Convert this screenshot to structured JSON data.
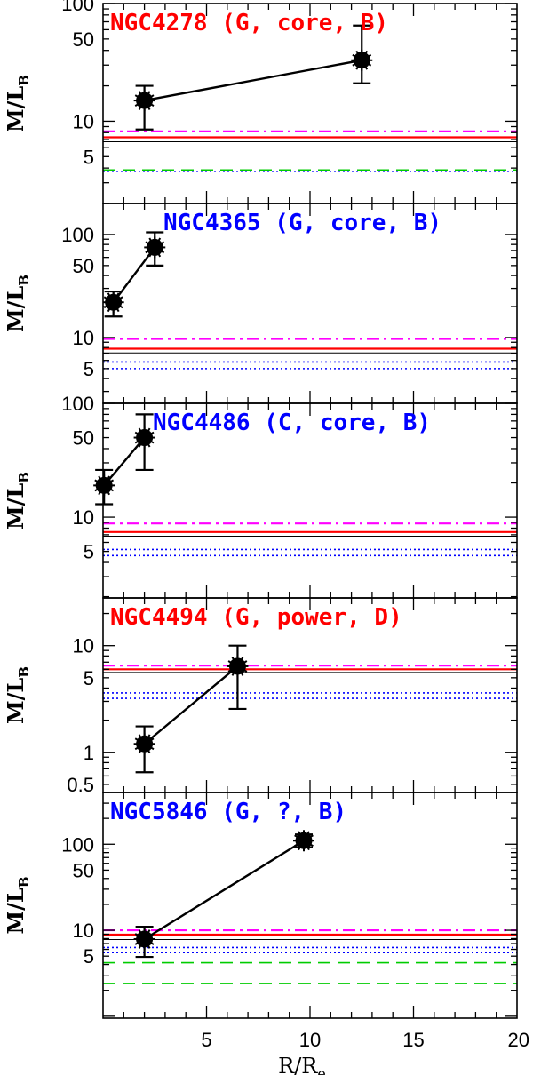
{
  "chart_data": {
    "type": "scatter",
    "x_axis": {
      "label": "R/R",
      "label_sub": "e",
      "range": [
        0,
        20
      ],
      "ticks": [
        5,
        10,
        15,
        20
      ]
    },
    "y_scale": "log",
    "ylabel": "M/L",
    "ylabel_sub": "B",
    "line_styles": {
      "red_solid": "#ff0000",
      "black_thin": "#000000",
      "magenta_dashdot": "#ff00ff",
      "blue_dotted": "#0000ff",
      "green_dashed": "#00cc00"
    },
    "panels": [
      {
        "title": "NGC4278 (G, core, B)",
        "title_color": "#ff0000",
        "ylim": [
          2,
          100
        ],
        "y_tick_labels": [
          5,
          10,
          50,
          100
        ],
        "points": [
          {
            "x": 2.0,
            "y": 15,
            "err_lo": 8.5,
            "err_hi": 20
          },
          {
            "x": 12.5,
            "y": 33,
            "err_lo": 21,
            "err_hi": 65
          }
        ],
        "hlines": [
          {
            "style": "magenta_dashdot",
            "y": 8.2
          },
          {
            "style": "red_solid",
            "y": 7.3
          },
          {
            "style": "black_thin",
            "y": 6.7
          },
          {
            "style": "green_dashed",
            "y": 3.85
          },
          {
            "style": "blue_dotted",
            "y": 3.75
          }
        ]
      },
      {
        "title": "NGC4365 (G, core, B)",
        "title_color": "#0000ff",
        "ylim": [
          2.3,
          200
        ],
        "y_tick_labels": [
          5,
          10,
          50,
          100
        ],
        "points": [
          {
            "x": 0.5,
            "y": 22,
            "err_lo": 16,
            "err_hi": 28
          },
          {
            "x": 2.5,
            "y": 75,
            "err_lo": 50,
            "err_hi": 105
          }
        ],
        "hlines": [
          {
            "style": "magenta_dashdot",
            "y": 9.7
          },
          {
            "style": "red_solid",
            "y": 7.8
          },
          {
            "style": "black_thin",
            "y": 7.1
          },
          {
            "style": "blue_dotted",
            "y": 5.8
          },
          {
            "style": "blue_dotted",
            "y": 5.0
          }
        ]
      },
      {
        "title": "NGC4486 (C, core, B)",
        "title_color": "#0000ff",
        "ylim": [
          1.95,
          100
        ],
        "y_tick_labels": [
          5,
          10,
          50,
          100
        ],
        "points": [
          {
            "x": 0.05,
            "y": 19,
            "err_lo": 13,
            "err_hi": 26
          },
          {
            "x": 2.0,
            "y": 50,
            "err_lo": 26,
            "err_hi": 80
          }
        ],
        "hlines": [
          {
            "style": "magenta_dashdot",
            "y": 8.8
          },
          {
            "style": "red_solid",
            "y": 7.4
          },
          {
            "style": "black_thin",
            "y": 6.8
          },
          {
            "style": "blue_dotted",
            "y": 5.2
          },
          {
            "style": "blue_dotted",
            "y": 4.6
          }
        ]
      },
      {
        "title": "NGC4494 (G, power, D)",
        "title_color": "#ff0000",
        "ylim": [
          0.42,
          28
        ],
        "y_tick_labels": [
          0.5,
          1,
          5,
          10
        ],
        "points": [
          {
            "x": 2.0,
            "y": 1.2,
            "err_lo": 0.65,
            "err_hi": 1.75
          },
          {
            "x": 6.5,
            "y": 6.4,
            "err_lo": 2.55,
            "err_hi": 10
          }
        ],
        "hlines": [
          {
            "style": "magenta_dashdot",
            "y": 6.5
          },
          {
            "style": "red_solid",
            "y": 6.0
          },
          {
            "style": "black_thin",
            "y": 5.6
          },
          {
            "style": "blue_dotted",
            "y": 3.6
          },
          {
            "style": "blue_dotted",
            "y": 3.2
          }
        ]
      },
      {
        "title": "NGC5846 (G, ?, B)",
        "title_color": "#0000ff",
        "ylim": [
          0.95,
          400
        ],
        "y_tick_labels": [
          5,
          10,
          50,
          100
        ],
        "points": [
          {
            "x": 2.0,
            "y": 7.9,
            "err_lo": 4.9,
            "err_hi": 11
          },
          {
            "x": 9.7,
            "y": 110,
            "err_lo": 92,
            "err_hi": 130
          }
        ],
        "hlines": [
          {
            "style": "magenta_dashdot",
            "y": 10.0
          },
          {
            "style": "red_solid",
            "y": 8.9
          },
          {
            "style": "black_thin",
            "y": 7.8
          },
          {
            "style": "blue_dotted",
            "y": 6.3
          },
          {
            "style": "blue_dotted",
            "y": 5.5
          },
          {
            "style": "green_dashed",
            "y": 4.2
          },
          {
            "style": "green_dashed",
            "y": 2.4
          }
        ]
      }
    ]
  }
}
